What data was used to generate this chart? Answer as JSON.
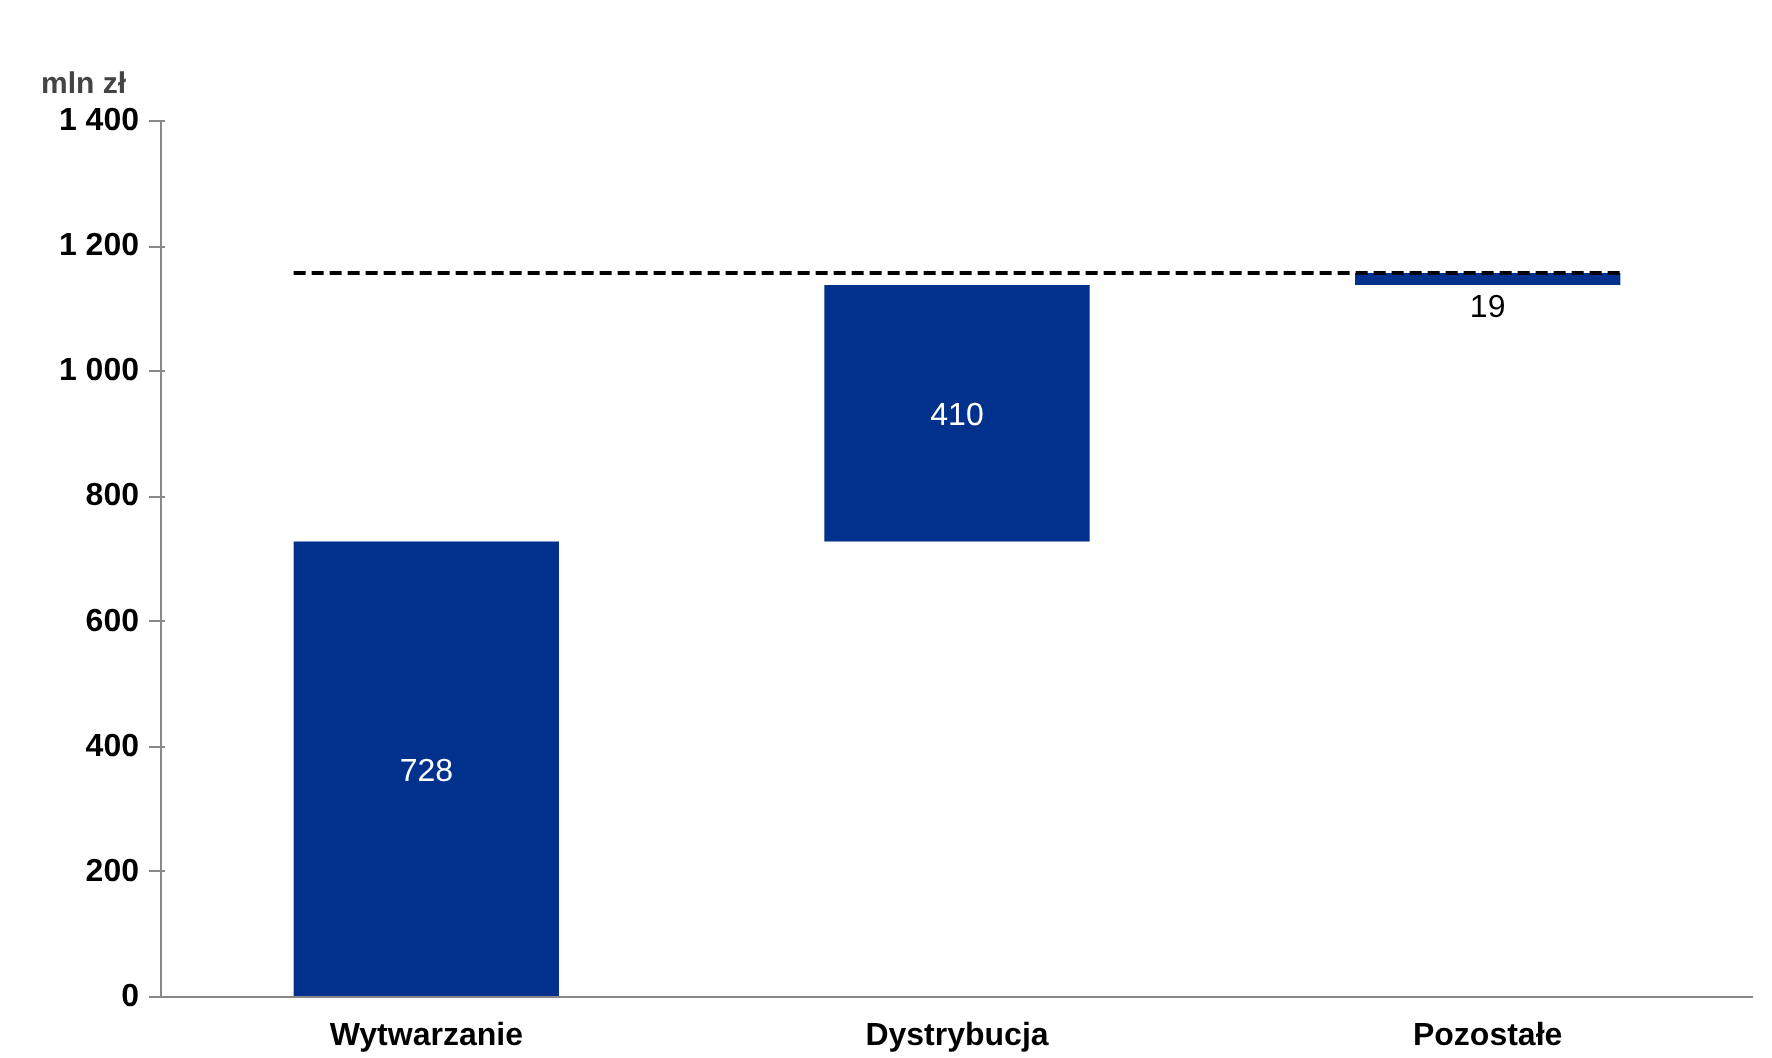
{
  "chart_data": {
    "type": "bar",
    "ylabel": "mln zł",
    "categories": [
      "Wytwarzanie",
      "Dystrybucja",
      "Pozostałe"
    ],
    "values": [
      728,
      410,
      19
    ],
    "base": [
      0,
      728,
      1138
    ],
    "color": "#00318c",
    "data_labels": true,
    "ylim": [
      0,
      1400
    ],
    "yticks": [
      0,
      {
        "value": 200,
        "label": "200"
      },
      {
        "value": 400,
        "label": "400"
      },
      {
        "value": 600,
        "label": "600"
      },
      {
        "value": 800,
        "label": "800"
      },
      {
        "value": 1000,
        "label": "1 000"
      },
      {
        "value": 1200,
        "label": "1 200"
      },
      {
        "value": 1400,
        "label": "1 400"
      }
    ],
    "ref_lines": [
      {
        "axis": "y",
        "value": 1157,
        "line_style": "dashed",
        "color": "#000000"
      }
    ],
    "grid": false
  }
}
